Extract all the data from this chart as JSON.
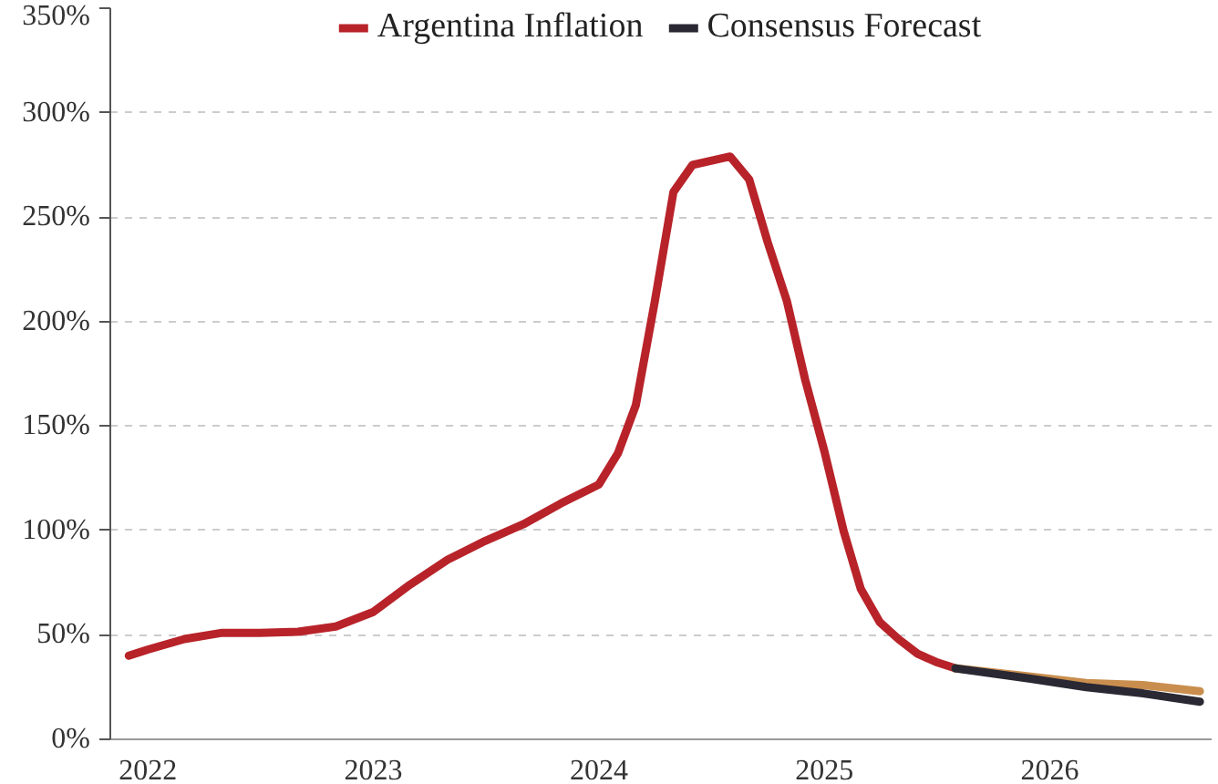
{
  "chart_data": {
    "type": "line",
    "legend": "top",
    "grid": "y",
    "line_style": "solid",
    "marker": "none",
    "xlim": [
      "2021-11",
      "2026-09-20"
    ],
    "ylim": [
      0,
      350
    ],
    "xticks": [
      {
        "value": "2022",
        "label": "2022"
      },
      {
        "value": "2023",
        "label": "2023"
      },
      {
        "value": "2024",
        "label": "2024"
      },
      {
        "value": "2025",
        "label": "2025"
      },
      {
        "value": "2026",
        "label": "2026"
      }
    ],
    "yticks": [
      {
        "value": 0,
        "label": "0%"
      },
      {
        "value": 50,
        "label": "50%"
      },
      {
        "value": 100,
        "label": "100%"
      },
      {
        "value": 150,
        "label": "150%"
      },
      {
        "value": 200,
        "label": "200%"
      },
      {
        "value": 250,
        "label": "250%"
      },
      {
        "value": 300,
        "label": "300%"
      },
      {
        "value": 350,
        "label": "350%"
      }
    ],
    "series": [
      {
        "name": "Argentina Inflation",
        "color": "#b8232a",
        "x": [
          "2021-12",
          "2022-01",
          "2022-03",
          "2022-05",
          "2022-07",
          "2022-09",
          "2022-11",
          "2023-01",
          "2023-03",
          "2023-05",
          "2023-07",
          "2023-09",
          "2023-11",
          "2024-01",
          "2024-02",
          "2024-03",
          "2024-04",
          "2024-05",
          "2024-06",
          "2024-08",
          "2024-09",
          "2024-10",
          "2024-11",
          "2024-12",
          "2025-01",
          "2025-02",
          "2025-03",
          "2025-04",
          "2025-05",
          "2025-06",
          "2025-07",
          "2025-08"
        ],
        "values": [
          40,
          43,
          48,
          51,
          51,
          51.5,
          54,
          61,
          74,
          86,
          95,
          103,
          113,
          122,
          137,
          160,
          210,
          262,
          275,
          279,
          268,
          238,
          210,
          172,
          138,
          100,
          72,
          56,
          48,
          41,
          37,
          34
        ]
      },
      {
        "color": "#c98e4e",
        "x": [
          "2025-08",
          "2025-12",
          "2026-03",
          "2026-06",
          "2026-09"
        ],
        "values": [
          34,
          30,
          27,
          26,
          23
        ]
      },
      {
        "name": "Consensus Forecast",
        "color": "#2a2833",
        "x": [
          "2025-08",
          "2025-12",
          "2026-03",
          "2026-06",
          "2026-09"
        ],
        "values": [
          34,
          29,
          25,
          22,
          18
        ]
      }
    ]
  }
}
